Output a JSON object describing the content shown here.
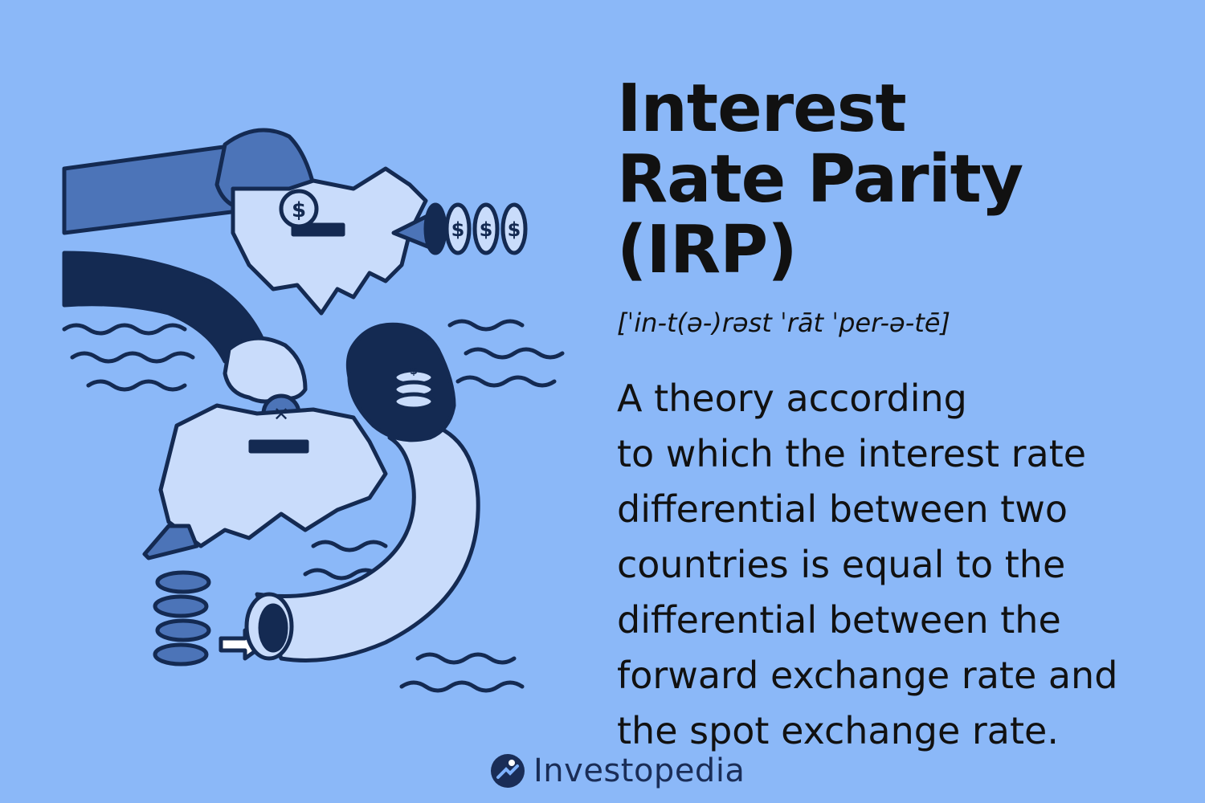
{
  "title": "Interest Rate Parity (IRP)",
  "pronunciation": "[ˈin-t(ə-)rəst ˈrāt ˈper-ə-tē]",
  "definition": "A theory according\nto which the interest rate\ndifferential between two\ncountries is equal to the\ndifferential between the\nforward exchange rate and\nthe spot exchange rate.",
  "brand": {
    "name": "Investopedia",
    "icon": "investopedia-logo-icon"
  },
  "colors": {
    "background": "#8bb8f8",
    "navy": "#142a52",
    "mid_blue": "#4c74b8",
    "light_blue": "#c9dcfb",
    "text": "#111111"
  },
  "illustration": {
    "coin_symbols": [
      "$",
      "$",
      "$",
      "$",
      "$",
      "✕"
    ]
  }
}
